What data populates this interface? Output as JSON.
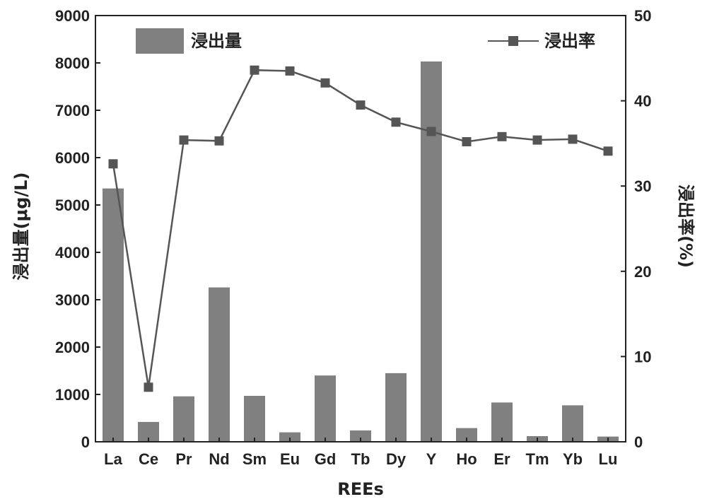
{
  "chart_data": {
    "type": "bar",
    "categories": [
      "La",
      "Ce",
      "Pr",
      "Nd",
      "Sm",
      "Eu",
      "Gd",
      "Tb",
      "Dy",
      "Y",
      "Ho",
      "Er",
      "Tm",
      "Yb",
      "Lu"
    ],
    "series": [
      {
        "name": "浸出量",
        "type": "bar",
        "axis": "left",
        "values": [
          5350,
          420,
          960,
          3260,
          970,
          200,
          1400,
          240,
          1450,
          8030,
          290,
          830,
          120,
          770,
          110
        ]
      },
      {
        "name": "浸出率",
        "type": "line",
        "axis": "right",
        "marker": "square",
        "values": [
          32.6,
          6.4,
          35.4,
          35.3,
          43.6,
          43.5,
          42.1,
          39.5,
          37.5,
          36.4,
          35.2,
          35.8,
          35.4,
          35.5,
          34.1
        ]
      }
    ],
    "xlabel": "REEs",
    "ylabel_left": "浸出量(μg/L)",
    "ylabel_right": "浸出率(%)",
    "ylim_left": [
      0,
      9000
    ],
    "ylim_right": [
      0,
      50
    ],
    "yticks_left": [
      "0",
      "1000",
      "2000",
      "3000",
      "4000",
      "5000",
      "6000",
      "7000",
      "8000",
      "9000"
    ],
    "yticks_right": [
      "0",
      "10",
      "20",
      "30",
      "40",
      "50"
    ],
    "legend": {
      "bar_label": "浸出量",
      "line_label": "浸出率",
      "bar_position": "top-left",
      "line_position": "top-right"
    },
    "grid": false,
    "colors": {
      "bar": "#808080",
      "line": "#555555",
      "axis": "#222222"
    }
  }
}
